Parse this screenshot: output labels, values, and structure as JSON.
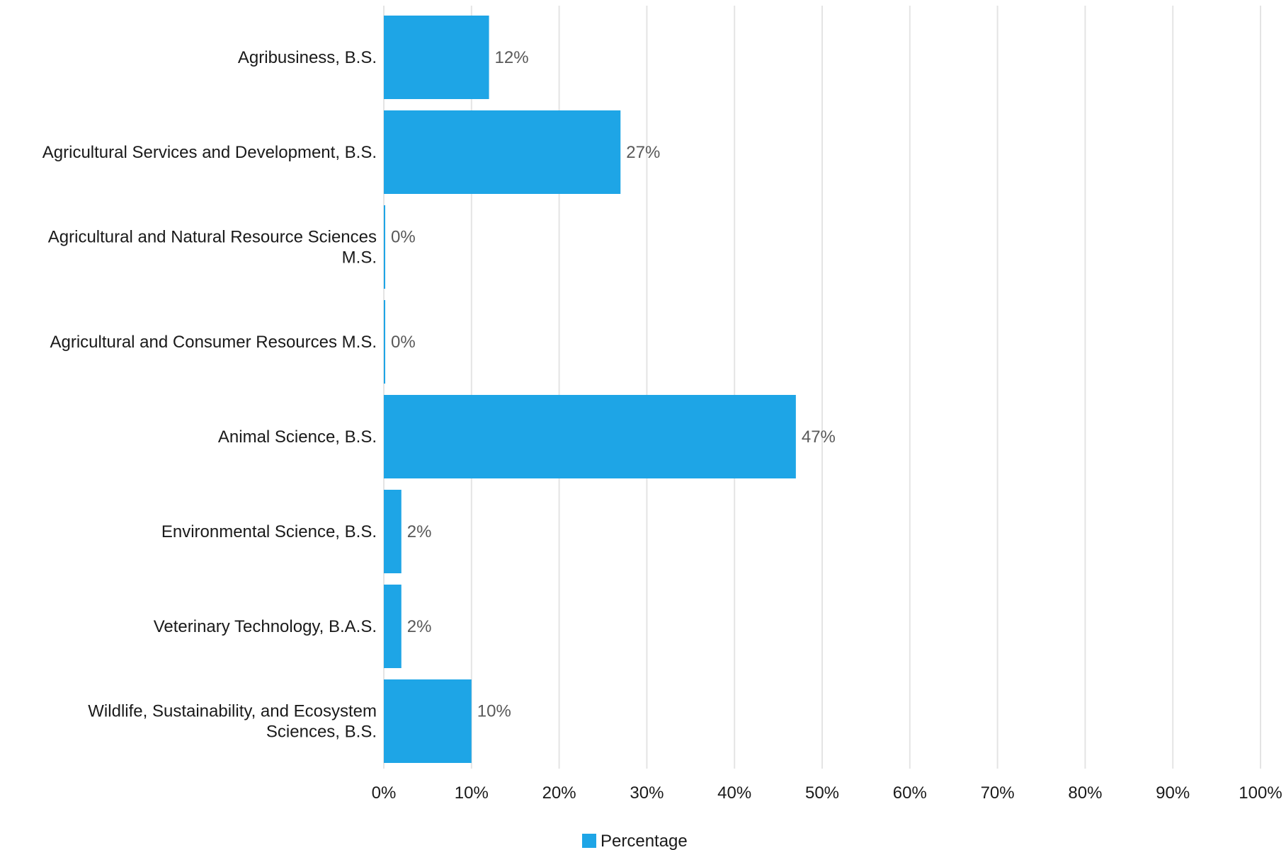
{
  "chart_data": {
    "type": "bar",
    "orientation": "horizontal",
    "categories": [
      [
        "Agribusiness, B.S."
      ],
      [
        "Agricultural Services and Development, B.S."
      ],
      [
        "Agricultural and Natural Resource Sciences",
        "M.S."
      ],
      [
        "Agricultural and Consumer Resources M.S."
      ],
      [
        "Animal Science, B.S."
      ],
      [
        "Environmental Science, B.S."
      ],
      [
        "Veterinary Technology, B.A.S."
      ],
      [
        "Wildlife, Sustainability, and Ecosystem",
        "Sciences, B.S."
      ]
    ],
    "series": [
      {
        "name": "Percentage",
        "color": "#1ea5e6",
        "values": [
          12,
          27,
          0,
          0,
          47,
          2,
          2,
          10
        ],
        "labels": [
          "12%",
          "27%",
          "0%",
          "0%",
          "47%",
          "2%",
          "2%",
          "10%"
        ]
      }
    ],
    "xlim": [
      0,
      100
    ],
    "xticks": [
      0,
      10,
      20,
      30,
      40,
      50,
      60,
      70,
      80,
      90,
      100
    ],
    "xtick_labels": [
      "0%",
      "10%",
      "20%",
      "30%",
      "40%",
      "50%",
      "60%",
      "70%",
      "80%",
      "90%",
      "100%"
    ],
    "grid": true,
    "legend_position": "bottom-center"
  }
}
